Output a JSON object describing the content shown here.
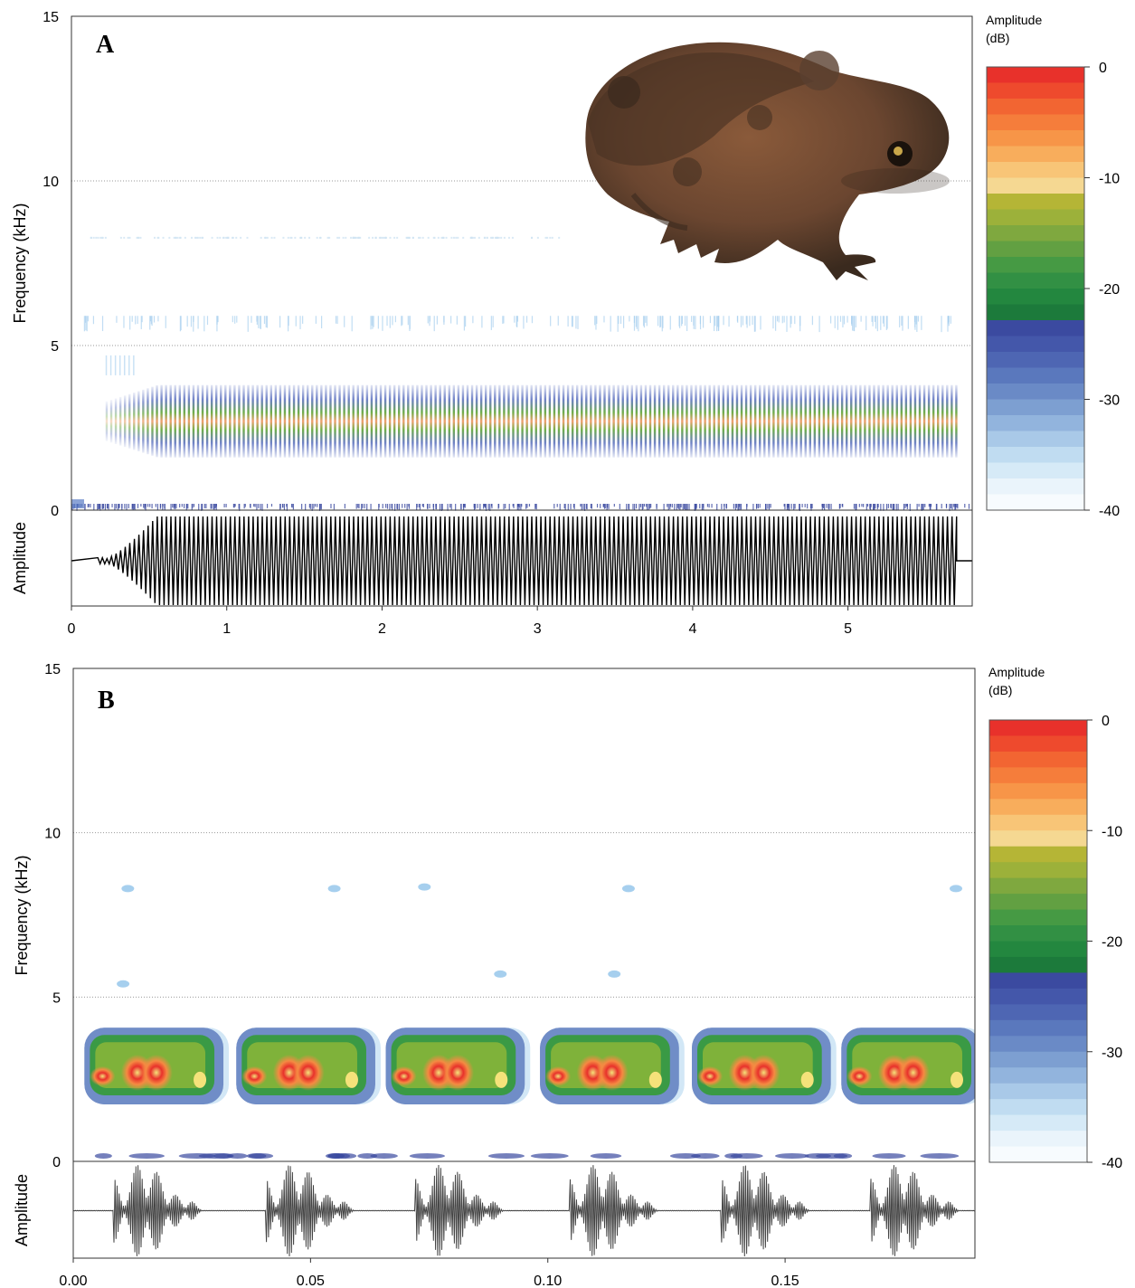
{
  "chart_data": [
    {
      "type": "heatmap",
      "subtype": "spectrogram-oscillogram",
      "panel_label": "A",
      "xlim": [
        0,
        5.8
      ],
      "xticks": [
        "0",
        "1",
        "2",
        "3",
        "4",
        "5"
      ],
      "xtick_values": [
        0,
        1,
        2,
        3,
        4,
        5
      ],
      "ylim": [
        0,
        15
      ],
      "yticks": [
        "0",
        "5",
        "10",
        "15"
      ],
      "ytick_values": [
        0,
        5,
        10,
        15
      ],
      "ylabel": "Frequency (kHz)",
      "oscillogram_label": "Amplitude",
      "grid": "dotted horizontal lines at 5 and 10 kHz",
      "call": {
        "start_s": 0.22,
        "full_amplitude_s": 0.55,
        "end_s": 5.7,
        "pulse_rate_per_s": 34,
        "band_low_khz": 2.0,
        "band_high_khz": 3.8,
        "dominant_khz": 2.7
      },
      "inset_image": "toad (Bufonidae) photograph, top-right",
      "colorbar": {
        "title": "Amplitude",
        "unit": "(dB)",
        "ticks": [
          "0",
          "-10",
          "-20",
          "-30",
          "-40"
        ],
        "range": [
          -40,
          0
        ]
      }
    },
    {
      "type": "heatmap",
      "subtype": "spectrogram-oscillogram",
      "panel_label": "B",
      "xlim": [
        0,
        0.19
      ],
      "xticks": [
        "0.00",
        "0.05",
        "0.10",
        "0.15"
      ],
      "xtick_values": [
        0,
        0.05,
        0.1,
        0.15
      ],
      "ylim": [
        0,
        15
      ],
      "yticks": [
        "0",
        "5",
        "10",
        "15"
      ],
      "ytick_values": [
        0,
        5,
        10,
        15
      ],
      "ylabel": "Frequency (kHz)",
      "oscillogram_label": "Amplitude",
      "grid": "dotted horizontal lines at 5 and 10 kHz",
      "pulses": [
        {
          "start_s": 0.0035,
          "end_s": 0.0305,
          "peaks_s": [
            0.0135,
            0.0175
          ]
        },
        {
          "start_s": 0.0355,
          "end_s": 0.0625,
          "peaks_s": [
            0.0455,
            0.0495
          ]
        },
        {
          "start_s": 0.067,
          "end_s": 0.094,
          "peaks_s": [
            0.077,
            0.081
          ]
        },
        {
          "start_s": 0.0995,
          "end_s": 0.1265,
          "peaks_s": [
            0.1095,
            0.1135
          ]
        },
        {
          "start_s": 0.1315,
          "end_s": 0.1585,
          "peaks_s": [
            0.1415,
            0.1455
          ]
        },
        {
          "start_s": 0.163,
          "end_s": 0.19,
          "peaks_s": [
            0.173,
            0.177
          ]
        }
      ],
      "band_low_khz": 1.9,
      "band_high_khz": 3.9,
      "dominant_khz": 2.7,
      "colorbar": {
        "title": "Amplitude",
        "unit": "(dB)",
        "ticks": [
          "0",
          "-10",
          "-20",
          "-30",
          "-40"
        ],
        "range": [
          -40,
          0
        ]
      }
    }
  ],
  "colors": {
    "red": "#e8312b",
    "orange": "#f58a42",
    "light_orange": "#f7c97a",
    "olive": "#b5b536",
    "green": "#3a9a45",
    "dark_green": "#1f7f3d",
    "dark_blue": "#3b4aa0",
    "mid_blue": "#5a7cc4",
    "light_blue": "#a6cfee",
    "pale_blue": "#eaf4fb",
    "toad_dark": "#3a2a1e",
    "toad_mid": "#6b4630",
    "toad_light": "#8a6a4a"
  }
}
